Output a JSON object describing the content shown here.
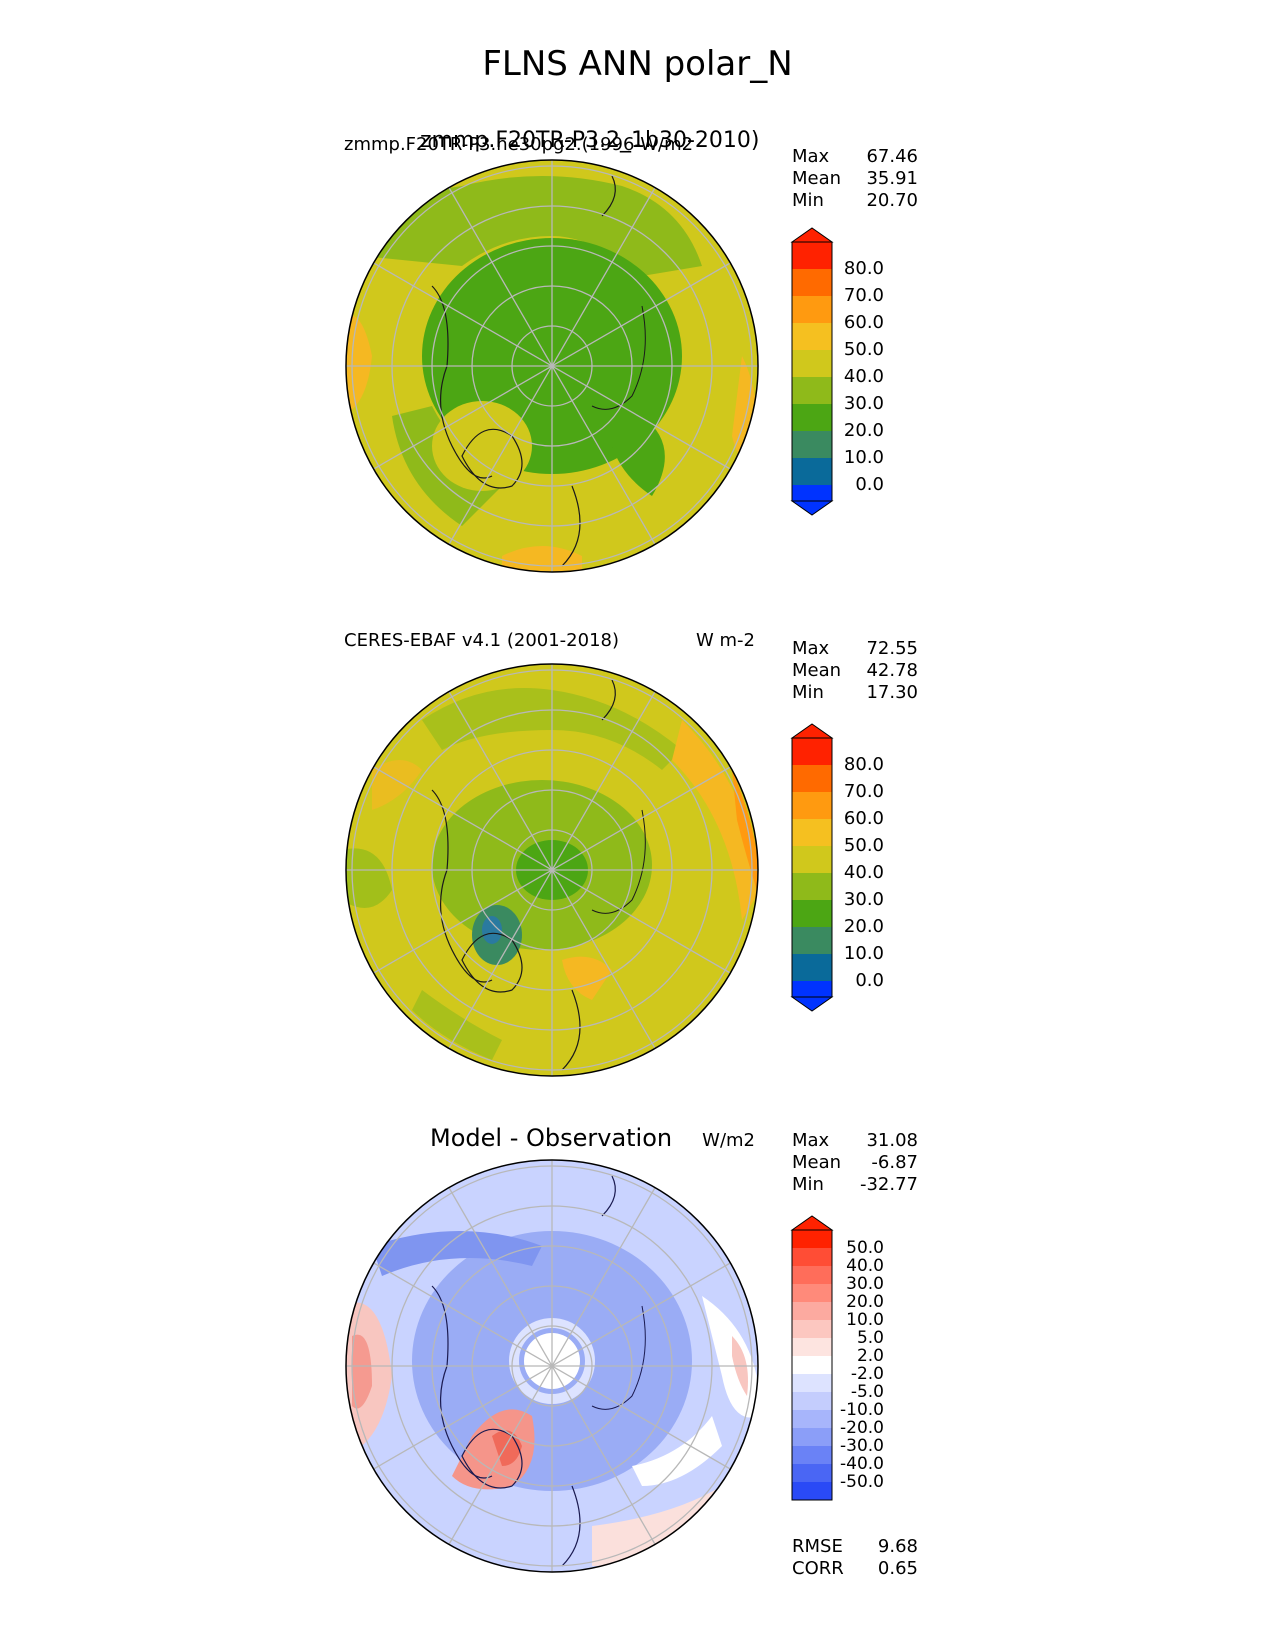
{
  "title": "FLNS ANN polar_N",
  "panels": [
    {
      "caption_left_a": "zmmp.F20TR-P3.2_1b30-2010)",
      "caption_left_b": "zmmp.F20TR-P3.ne30pg2.(1996-W/m2",
      "caption_right": "",
      "stats": {
        "max_label": "Max",
        "max": "67.46",
        "mean_label": "Mean",
        "mean": "35.91",
        "min_label": "Min",
        "min": "20.70"
      },
      "colorbar": [
        "80.0",
        "70.0",
        "60.0",
        "50.0",
        "40.0",
        "30.0",
        "20.0",
        "10.0",
        "0.0"
      ]
    },
    {
      "caption_left": "CERES-EBAF v4.1 (2001-2018)",
      "caption_right": "W m-2",
      "stats": {
        "max_label": "Max",
        "max": "72.55",
        "mean_label": "Mean",
        "mean": "42.78",
        "min_label": "Min",
        "min": "17.30"
      },
      "colorbar": [
        "80.0",
        "70.0",
        "60.0",
        "50.0",
        "40.0",
        "30.0",
        "20.0",
        "10.0",
        "0.0"
      ]
    },
    {
      "caption_center": "Model - Observation",
      "caption_right": "W/m2",
      "stats": {
        "max_label": "Max",
        "max": "31.08",
        "mean_label": "Mean",
        "mean": "-6.87",
        "min_label": "Min",
        "min": "-32.77"
      },
      "colorbar": [
        "50.0",
        "40.0",
        "30.0",
        "20.0",
        "10.0",
        "5.0",
        "2.0",
        "-2.0",
        "-5.0",
        "-10.0",
        "-20.0",
        "-30.0",
        "-40.0",
        "-50.0"
      ],
      "rmse_label": "RMSE",
      "rmse": "9.68",
      "corr_label": "CORR",
      "corr": "0.65"
    }
  ],
  "colors": {
    "seq_top": "#ff2200",
    "seq_bottom": "#0033ff",
    "diff_top": "#ff2200",
    "diff_bottom": "#0033ff"
  }
}
